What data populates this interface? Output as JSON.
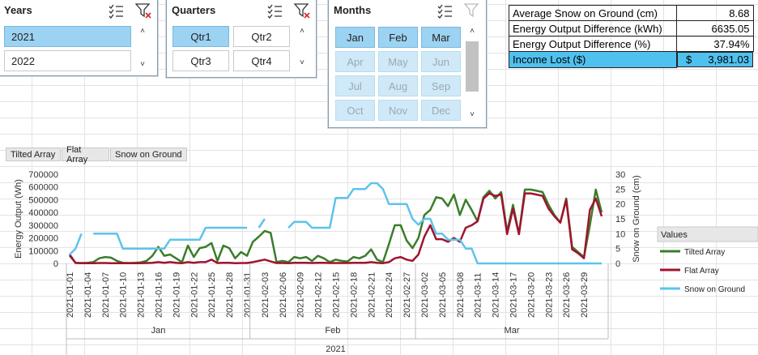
{
  "slicers": {
    "years": {
      "title": "Years",
      "items": [
        {
          "label": "2021",
          "selected": true
        },
        {
          "label": "2022",
          "selected": false
        }
      ]
    },
    "quarters": {
      "title": "Quarters",
      "items": [
        {
          "label": "Qtr1",
          "selected": true
        },
        {
          "label": "Qtr2",
          "selected": false
        },
        {
          "label": "Qtr3",
          "selected": false
        },
        {
          "label": "Qtr4",
          "selected": false
        }
      ]
    },
    "months": {
      "title": "Months",
      "items": [
        {
          "label": "Jan",
          "state": "selected"
        },
        {
          "label": "Feb",
          "state": "selected"
        },
        {
          "label": "Mar",
          "state": "selected"
        },
        {
          "label": "Apr",
          "state": "dim"
        },
        {
          "label": "May",
          "state": "dim"
        },
        {
          "label": "Jun",
          "state": "dim"
        },
        {
          "label": "Jul",
          "state": "dim"
        },
        {
          "label": "Aug",
          "state": "dim"
        },
        {
          "label": "Sep",
          "state": "dim"
        },
        {
          "label": "Oct",
          "state": "dim"
        },
        {
          "label": "Nov",
          "state": "dim"
        },
        {
          "label": "Dec",
          "state": "dim"
        }
      ]
    }
  },
  "icons": {
    "multiselect": "multi-select-icon",
    "clearfilter": "clear-filter-icon",
    "scrollup": "scroll-up-icon",
    "scrolldown": "scroll-down-icon"
  },
  "kpi": [
    {
      "label": "Average Snow on Ground (cm)",
      "value": "8.68",
      "highlight": false
    },
    {
      "label": "Energy Output Difference (kWh)",
      "value": "6635.05",
      "highlight": false
    },
    {
      "label": "Energy Output Difference (%)",
      "value": "37.94%",
      "highlight": false
    },
    {
      "label": "Income Lost ($)",
      "value": "3,981.03",
      "currency": "$",
      "highlight": true
    }
  ],
  "field_buttons": [
    "Tilted Array",
    "Flat Array",
    "Snow on Ground"
  ],
  "legend": {
    "title": "Values"
  },
  "colors": {
    "tilted": "#3a7d2a",
    "flat": "#a0142e",
    "snow": "#5ec3ec",
    "selected": "#9dd3f2",
    "dim": "#cfe9f8",
    "kpi_highlight": "#4fc1ee"
  },
  "chart_data": {
    "type": "line",
    "ylabel": "Energy Output (Wh)",
    "y2label": "Snow on Ground (cm)",
    "ylim": [
      0,
      700000
    ],
    "yticks": [
      0,
      100000,
      200000,
      300000,
      400000,
      500000,
      600000,
      700000
    ],
    "y2lim": [
      0,
      30
    ],
    "y2ticks": [
      0,
      5,
      10,
      15,
      20,
      25,
      30
    ],
    "x_start": "2021-01-01",
    "x_tick_labels": [
      "2021-01-01",
      "2021-01-04",
      "2021-01-07",
      "2021-01-10",
      "2021-01-13",
      "2021-01-16",
      "2021-01-19",
      "2021-01-22",
      "2021-01-25",
      "2021-01-28",
      "2021-01-31",
      "2021-02-03",
      "2021-02-06",
      "2021-02-09",
      "2021-02-12",
      "2021-02-15",
      "2021-02-18",
      "2021-02-21",
      "2021-02-24",
      "2021-02-27",
      "2021-03-02",
      "2021-03-05",
      "2021-03-08",
      "2021-03-11",
      "2021-03-14",
      "2021-03-17",
      "2021-03-20",
      "2021-03-23",
      "2021-03-26",
      "2021-03-29"
    ],
    "month_groups": [
      {
        "label": "Jan",
        "days": 31
      },
      {
        "label": "Feb",
        "days": 28
      },
      {
        "label": "Mar",
        "days": 31
      }
    ],
    "year_label": "2021",
    "legend_placement": "right",
    "series": [
      {
        "name": "Tilted Array",
        "axis": "left",
        "values": [
          60000,
          5000,
          3000,
          5000,
          10000,
          40000,
          50000,
          45000,
          20000,
          5000,
          3000,
          5000,
          8000,
          20000,
          60000,
          130000,
          60000,
          70000,
          40000,
          10000,
          140000,
          50000,
          120000,
          130000,
          160000,
          20000,
          140000,
          120000,
          40000,
          90000,
          60000,
          170000,
          210000,
          255000,
          240000,
          10000,
          20000,
          10000,
          50000,
          40000,
          50000,
          20000,
          60000,
          40000,
          10000,
          30000,
          20000,
          15000,
          50000,
          40000,
          60000,
          110000,
          30000,
          10000,
          150000,
          300000,
          300000,
          180000,
          120000,
          200000,
          380000,
          420000,
          520000,
          510000,
          450000,
          540000,
          380000,
          500000,
          420000,
          330000,
          520000,
          570000,
          510000,
          560000,
          250000,
          460000,
          230000,
          580000,
          580000,
          570000,
          560000,
          460000,
          380000,
          320000,
          510000,
          130000,
          90000,
          50000,
          300000,
          580000,
          400000
        ]
      },
      {
        "name": "Flat Array",
        "axis": "left",
        "values": [
          70000,
          3000,
          2000,
          2000,
          2000,
          3000,
          3000,
          2000,
          2000,
          2000,
          2000,
          2000,
          2000,
          3000,
          5000,
          10000,
          5000,
          10000,
          5000,
          2000,
          10000,
          5000,
          10000,
          10000,
          30000,
          3000,
          5000,
          5000,
          2000,
          3000,
          3000,
          10000,
          20000,
          30000,
          15000,
          3000,
          3000,
          2000,
          5000,
          5000,
          5000,
          3000,
          5000,
          5000,
          3000,
          3000,
          3000,
          3000,
          5000,
          5000,
          5000,
          10000,
          5000,
          2000,
          10000,
          40000,
          50000,
          30000,
          20000,
          70000,
          210000,
          300000,
          190000,
          190000,
          170000,
          200000,
          170000,
          280000,
          300000,
          330000,
          510000,
          550000,
          530000,
          540000,
          230000,
          430000,
          230000,
          550000,
          550000,
          540000,
          530000,
          430000,
          370000,
          320000,
          500000,
          110000,
          80000,
          40000,
          420000,
          510000,
          370000
        ]
      },
      {
        "name": "Snow on Ground",
        "axis": "right",
        "values": [
          3,
          5,
          10,
          null,
          10,
          10,
          10,
          10,
          10,
          5,
          5,
          5,
          5,
          5,
          5,
          5,
          5,
          8,
          8,
          8,
          8,
          8,
          8,
          12,
          12,
          12,
          12,
          12,
          12,
          12,
          12,
          null,
          12,
          15,
          null,
          null,
          null,
          12,
          14,
          14,
          14,
          12,
          12,
          12,
          12,
          22,
          22,
          22,
          25,
          25,
          25,
          27,
          27,
          25,
          20,
          20,
          20,
          20,
          15,
          13,
          15,
          15,
          10,
          10,
          8,
          8,
          8,
          5,
          5,
          0,
          0,
          0,
          0,
          0,
          0,
          0,
          0,
          0,
          0,
          0,
          0,
          0,
          0,
          0,
          0,
          0,
          0,
          0,
          0,
          0,
          0
        ]
      }
    ]
  }
}
